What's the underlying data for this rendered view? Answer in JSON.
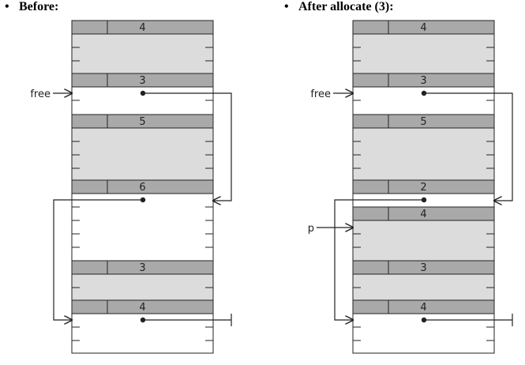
{
  "before": {
    "heading": "Before:",
    "blocks": [
      {
        "size": "4",
        "allocated": true
      },
      {
        "size": "3",
        "allocated": false
      },
      {
        "size": "5",
        "allocated": true
      },
      {
        "size": "6",
        "allocated": false
      },
      {
        "size": "3",
        "allocated": true
      },
      {
        "size": "4",
        "allocated": false
      }
    ],
    "labels": {
      "free": "free"
    }
  },
  "after": {
    "heading": "After allocate (3):",
    "blocks": [
      {
        "size": "4",
        "allocated": true
      },
      {
        "size": "3",
        "allocated": false
      },
      {
        "size": "5",
        "allocated": true
      },
      {
        "size": "2",
        "allocated": false
      },
      {
        "size": "4",
        "allocated": true
      },
      {
        "size": "3",
        "allocated": true
      },
      {
        "size": "4",
        "allocated": false
      }
    ],
    "labels": {
      "free": "free",
      "p": "p"
    }
  },
  "colors": {
    "header": "#a9a9a9",
    "allocated": "#dcdcdc",
    "free": "#ffffff",
    "stroke": "#222222"
  }
}
